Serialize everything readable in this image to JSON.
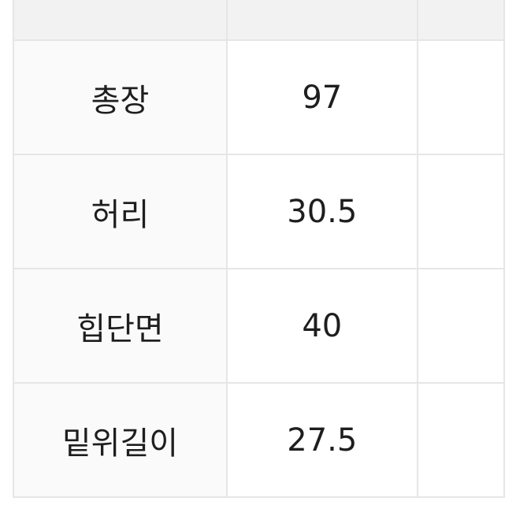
{
  "table": {
    "rows": [
      {
        "label": "총장",
        "value": "97"
      },
      {
        "label": "허리",
        "value": "30.5"
      },
      {
        "label": "힙단면",
        "value": "40"
      },
      {
        "label": "밑위길이",
        "value": "27.5"
      }
    ]
  }
}
